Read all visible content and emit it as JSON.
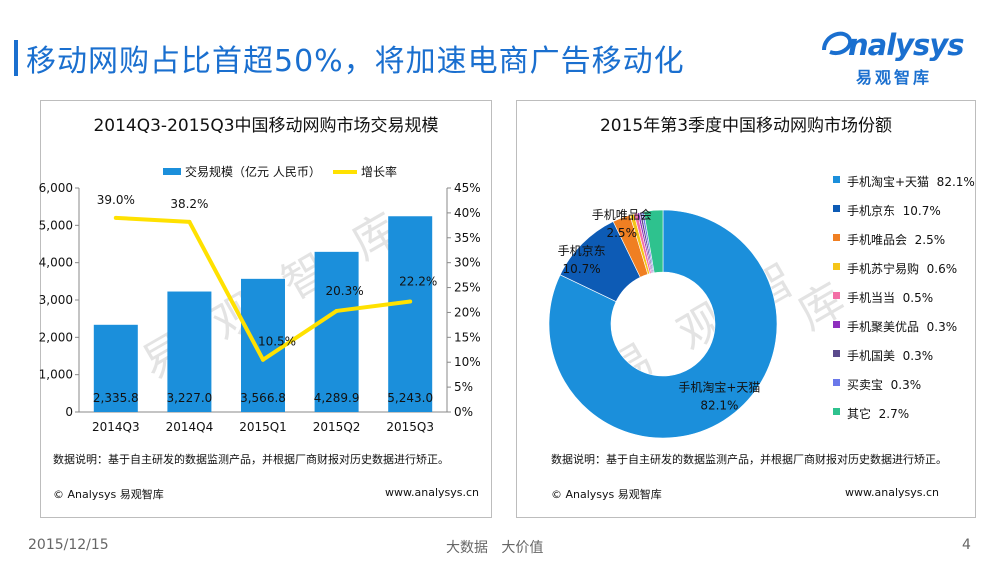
{
  "page": {
    "title": "移动网购占比首超50%，将加速电商广告移动化",
    "logo_word": "nalysys",
    "logo_sub": "易观智库",
    "date": "2015/12/15",
    "slogan": "大数据   大价值",
    "page_number": "4"
  },
  "watermark": [
    "易",
    "观",
    "智",
    "库"
  ],
  "left_panel": {
    "note": "数据说明：基于自主研发的数据监测产品，并根据厂商财报对历史数据进行矫正。",
    "footer_left": "© Analysys 易观智库",
    "footer_right": "www.analysys.cn"
  },
  "right_panel": {
    "note": "数据说明：基于自主研发的数据监测产品，并根据厂商财报对历史数据进行矫正。",
    "footer_left": "© Analysys 易观智库",
    "footer_right": "www.analysys.cn"
  },
  "colors": {
    "brand": "#1a6fcf",
    "bar": "#1b8fdb",
    "line": "#ffe100"
  },
  "chart_data": [
    {
      "type": "bar",
      "title": "2014Q3-2015Q3中国移动网购市场交易规模",
      "categories": [
        "2014Q3",
        "2014Q4",
        "2015Q1",
        "2015Q2",
        "2015Q3"
      ],
      "series": [
        {
          "name": "交易规模（亿元 人民币）",
          "type": "bar",
          "axis": "left",
          "values": [
            2335.8,
            3227.0,
            3566.8,
            4289.9,
            5243.0
          ],
          "labels": [
            "2,335.8",
            "3,227.0",
            "3,566.8",
            "4,289.9",
            "5,243.0"
          ]
        },
        {
          "name": "增长率",
          "type": "line",
          "axis": "right",
          "values": [
            39.0,
            38.2,
            10.5,
            20.3,
            22.2
          ],
          "labels": [
            "39.0%",
            "38.2%",
            "10.5%",
            "20.3%",
            "22.2%"
          ]
        }
      ],
      "ylim_left": [
        0,
        6000
      ],
      "yticks_left": [
        "0",
        "1,000",
        "2,000",
        "3,000",
        "4,000",
        "5,000",
        "6,000"
      ],
      "ylim_right": [
        0,
        45
      ],
      "yticks_right": [
        "0%",
        "5%",
        "10%",
        "15%",
        "20%",
        "25%",
        "30%",
        "35%",
        "40%",
        "45%"
      ],
      "xlabel": "",
      "ylabel": "",
      "legend_position": "top"
    },
    {
      "type": "pie",
      "title": "2015年第3季度中国移动网购市场份额",
      "donut": true,
      "legend_position": "right",
      "slices": [
        {
          "name": "手机淘宝+天猫",
          "value": 82.1,
          "label": "82.1%",
          "color": "#1b8fdb",
          "legend": "手机淘宝+天猫  82.1%"
        },
        {
          "name": "手机京东",
          "value": 10.7,
          "label": "10.7%",
          "color": "#0d5bb5",
          "legend": "手机京东  10.7%"
        },
        {
          "name": "手机唯品会",
          "value": 2.5,
          "label": "2.5%",
          "color": "#f07f22",
          "legend": "手机唯品会  2.5%"
        },
        {
          "name": "手机苏宁易购",
          "value": 0.6,
          "label": "0.6%",
          "color": "#f5c518",
          "legend": "手机苏宁易购  0.6%"
        },
        {
          "name": "手机当当",
          "value": 0.5,
          "label": "0.5%",
          "color": "#f36fa6",
          "legend": "手机当当  0.5%"
        },
        {
          "name": "手机聚美优品",
          "value": 0.3,
          "label": "0.3%",
          "color": "#8e2fbe",
          "legend": "手机聚美优品  0.3%"
        },
        {
          "name": "手机国美",
          "value": 0.3,
          "label": "0.3%",
          "color": "#5a4a8c",
          "legend": "手机国美  0.3%"
        },
        {
          "name": "买卖宝",
          "value": 0.3,
          "label": "0.3%",
          "color": "#6a78ea",
          "legend": "买卖宝  0.3%"
        },
        {
          "name": "其它",
          "value": 2.7,
          "label": "2.7%",
          "color": "#2ec28e",
          "legend": "其它  2.7%"
        }
      ],
      "data_labels": [
        {
          "slice": "手机淘宝+天猫",
          "name": "手机淘宝+天猫",
          "label": "82.1%"
        },
        {
          "slice": "手机京东",
          "name": "手机京东",
          "label": "10.7%"
        },
        {
          "slice": "手机唯品会",
          "name": "手机唯品会",
          "label": "2.5%"
        }
      ]
    }
  ]
}
